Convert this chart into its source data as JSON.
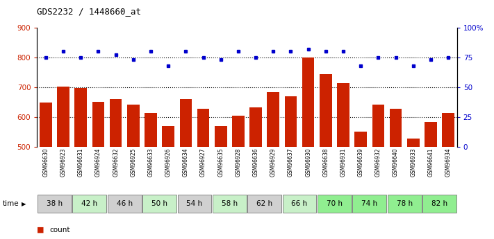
{
  "title": "GDS2232 / 1448660_at",
  "samples": [
    "GSM96630",
    "GSM96923",
    "GSM96631",
    "GSM96924",
    "GSM96632",
    "GSM96925",
    "GSM96633",
    "GSM96926",
    "GSM96634",
    "GSM96927",
    "GSM96635",
    "GSM96928",
    "GSM96636",
    "GSM96929",
    "GSM96637",
    "GSM96930",
    "GSM96638",
    "GSM96931",
    "GSM96639",
    "GSM96932",
    "GSM96640",
    "GSM96933",
    "GSM96641",
    "GSM96934"
  ],
  "counts": [
    648,
    702,
    698,
    652,
    660,
    643,
    614,
    570,
    661,
    627,
    570,
    605,
    632,
    684,
    670,
    800,
    743,
    714,
    552,
    642,
    628,
    528,
    583,
    613
  ],
  "percentile_ranks": [
    75,
    80,
    75,
    80,
    77,
    73,
    80,
    68,
    80,
    75,
    73,
    80,
    75,
    80,
    80,
    82,
    80,
    80,
    68,
    75,
    75,
    68,
    73,
    75
  ],
  "time_groups": [
    {
      "label": "38 h",
      "indices": [
        0,
        1
      ],
      "color": "#d0d0d0"
    },
    {
      "label": "42 h",
      "indices": [
        2,
        3
      ],
      "color": "#c8f0c8"
    },
    {
      "label": "46 h",
      "indices": [
        4,
        5
      ],
      "color": "#d0d0d0"
    },
    {
      "label": "50 h",
      "indices": [
        6,
        7
      ],
      "color": "#c8f0c8"
    },
    {
      "label": "54 h",
      "indices": [
        8,
        9
      ],
      "color": "#d0d0d0"
    },
    {
      "label": "58 h",
      "indices": [
        10,
        11
      ],
      "color": "#c8f0c8"
    },
    {
      "label": "62 h",
      "indices": [
        12,
        13
      ],
      "color": "#d0d0d0"
    },
    {
      "label": "66 h",
      "indices": [
        14,
        15
      ],
      "color": "#c8f0c8"
    },
    {
      "label": "70 h",
      "indices": [
        16,
        17
      ],
      "color": "#90ee90"
    },
    {
      "label": "74 h",
      "indices": [
        18,
        19
      ],
      "color": "#90ee90"
    },
    {
      "label": "78 h",
      "indices": [
        20,
        21
      ],
      "color": "#90ee90"
    },
    {
      "label": "82 h",
      "indices": [
        22,
        23
      ],
      "color": "#90ee90"
    }
  ],
  "ylim_left": [
    500,
    900
  ],
  "ylim_right": [
    0,
    100
  ],
  "yticks_left": [
    500,
    600,
    700,
    800,
    900
  ],
  "yticks_right": [
    0,
    25,
    50,
    75,
    100
  ],
  "ytick_labels_right": [
    "0",
    "25",
    "50",
    "75",
    "100%"
  ],
  "bar_color": "#cc2200",
  "dot_color": "#0000cc",
  "background_color": "#ffffff",
  "grid_color": "#000000",
  "left_tick_color": "#cc2200",
  "right_tick_color": "#0000cc"
}
